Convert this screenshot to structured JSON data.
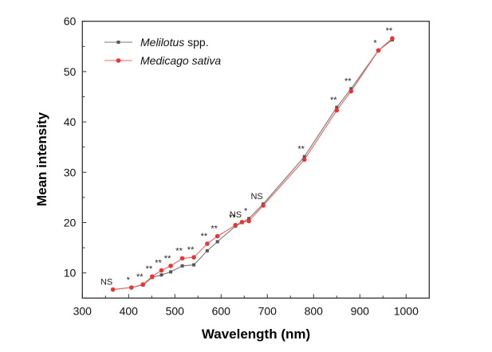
{
  "chart_data": {
    "type": "line",
    "title": "",
    "xlabel": "Wavelength (nm)",
    "ylabel": "Mean intensity",
    "xlim": [
      300,
      1050
    ],
    "ylim": [
      5,
      60
    ],
    "xticks": [
      300,
      400,
      500,
      600,
      700,
      800,
      900,
      1000
    ],
    "yticks": [
      10,
      20,
      30,
      40,
      50,
      60
    ],
    "grid": false,
    "legend_position": "top-left",
    "x": [
      366,
      406,
      431,
      451,
      471,
      491,
      516,
      541,
      570,
      592,
      631,
      645,
      660,
      691,
      780,
      850,
      881,
      940,
      970
    ],
    "series": [
      {
        "name": "Melilotus",
        "name_suffix": " spp.",
        "color": "#555555",
        "marker": "square",
        "values": [
          6.7,
          7.1,
          7.6,
          9.1,
          9.6,
          10.2,
          11.4,
          11.6,
          14.4,
          16.2,
          19.3,
          20.0,
          20.8,
          23.7,
          33.1,
          42.9,
          46.6,
          54.2,
          56.3
        ]
      },
      {
        "name": "Medicago sativa",
        "name_suffix": "",
        "color": "#ee3333",
        "marker": "circle",
        "values": [
          6.7,
          7.1,
          7.7,
          9.3,
          10.5,
          11.4,
          12.9,
          13.1,
          15.8,
          17.3,
          19.5,
          20.1,
          20.3,
          23.4,
          32.5,
          42.3,
          46.1,
          54.2,
          56.6
        ]
      }
    ],
    "annotations": [
      "NS",
      "*",
      "**",
      "**",
      "**",
      "**",
      "**",
      "**",
      "**",
      "**",
      "**",
      "NS",
      "*",
      "NS",
      "**",
      "**",
      "**",
      "*",
      "**"
    ]
  }
}
